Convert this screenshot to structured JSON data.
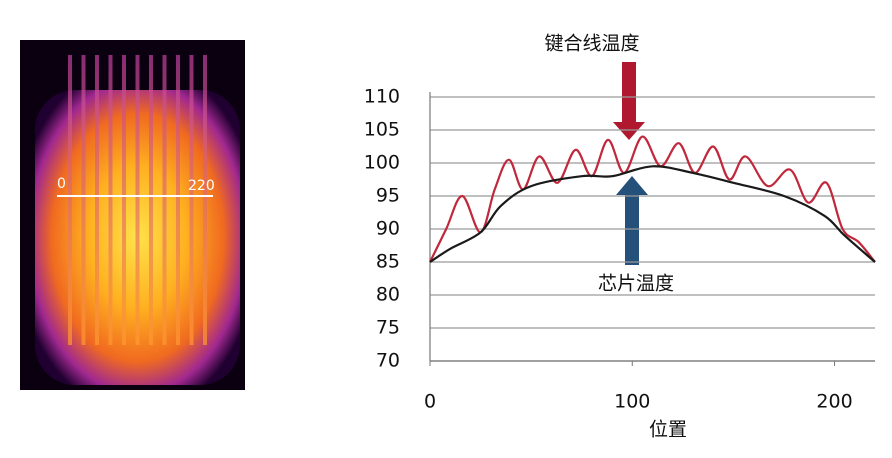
{
  "thermal_image": {
    "scale_labels": [
      "0",
      "220"
    ]
  },
  "chart_data": {
    "type": "line",
    "x_label": "位置",
    "annotations": [
      "键合线温度",
      "芯片温度"
    ],
    "xlim": [
      0,
      220
    ],
    "xticks": [
      0,
      100,
      200
    ],
    "ylim": [
      70,
      110
    ],
    "yticks": [
      70,
      75,
      80,
      85,
      90,
      95,
      100,
      105,
      110
    ],
    "grid": true,
    "series": [
      {
        "color": "#c0283c",
        "x": [
          0,
          8,
          16,
          25,
          32,
          39,
          46,
          54,
          63,
          72,
          80,
          88,
          96,
          105,
          114,
          123,
          131,
          140,
          148,
          156,
          167,
          178,
          187,
          196,
          204,
          212,
          220
        ],
        "values": [
          85,
          90,
          95,
          89.5,
          96,
          100.5,
          96,
          101,
          97,
          102,
          98,
          103.5,
          98.5,
          104,
          99.5,
          103,
          98.5,
          102.5,
          97.5,
          101,
          96.5,
          99,
          94,
          97,
          90,
          88,
          85
        ]
      },
      {
        "color": "#1a1a1a",
        "x": [
          0,
          10,
          25,
          35,
          50,
          75,
          90,
          110,
          130,
          150,
          175,
          195,
          205,
          220
        ],
        "values": [
          85,
          87,
          89.5,
          93.5,
          96.5,
          98,
          98,
          99.5,
          98.5,
          97,
          95,
          92,
          89,
          85
        ]
      }
    ]
  }
}
